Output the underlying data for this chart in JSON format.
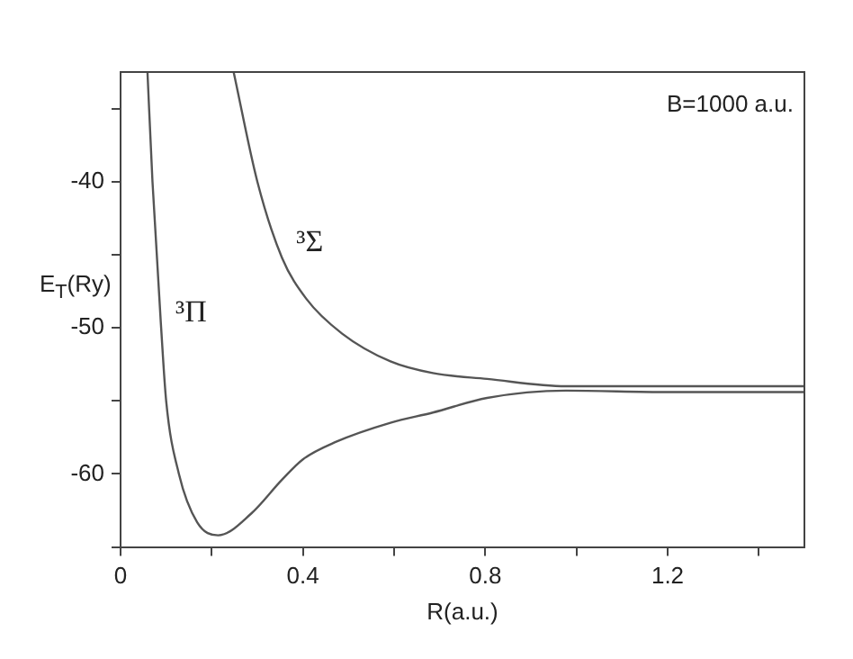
{
  "chart_data": {
    "type": "line",
    "xlabel": "R(a.u.)",
    "ylabel": "E$_{T}$(Ry)",
    "annotations": [
      "B=1000 a.u."
    ],
    "xlim": [
      0,
      1.5
    ],
    "xticks": [
      0,
      {
        "value": 0.2,
        "label": null
      },
      0.4,
      {
        "value": 0.6,
        "label": null
      },
      0.8,
      {
        "value": 1.0,
        "label": null
      },
      1.2,
      {
        "value": 1.4,
        "label": null
      }
    ],
    "ylim": [
      -65,
      -32.5
    ],
    "yticks": [
      {
        "value": -65,
        "label": null
      },
      -60,
      {
        "value": -55,
        "label": null
      },
      -50,
      {
        "value": -45,
        "label": null
      },
      -40,
      {
        "value": -35,
        "label": null
      }
    ],
    "grid": false,
    "legend": false,
    "marker": "none",
    "line_style": "solid",
    "series": [
      {
        "name": "³Π",
        "color": "#555555",
        "x": [
          0.059,
          0.07,
          0.089,
          0.1,
          0.128,
          0.168,
          0.214,
          0.287,
          0.354,
          0.4,
          0.473,
          0.592,
          0.685,
          0.804,
          0.977,
          1.2,
          1.5
        ],
        "values": [
          -32.5,
          -40,
          -50,
          -55,
          -60,
          -63.3,
          -64.2,
          -62.7,
          -60.4,
          -59,
          -57.8,
          -56.5,
          -55.8,
          -54.8,
          -54.3,
          -54.4,
          -54.4
        ]
      },
      {
        "name": "³Σ",
        "color": "#555555",
        "x": [
          0.248,
          0.3,
          0.354,
          0.407,
          0.486,
          0.592,
          0.685,
          0.804,
          0.977,
          1.2,
          1.5
        ],
        "values": [
          -32.5,
          -40,
          -45.2,
          -48,
          -50.4,
          -52.3,
          -53.1,
          -53.5,
          -54.0,
          -54.0,
          -54.0
        ]
      }
    ]
  }
}
